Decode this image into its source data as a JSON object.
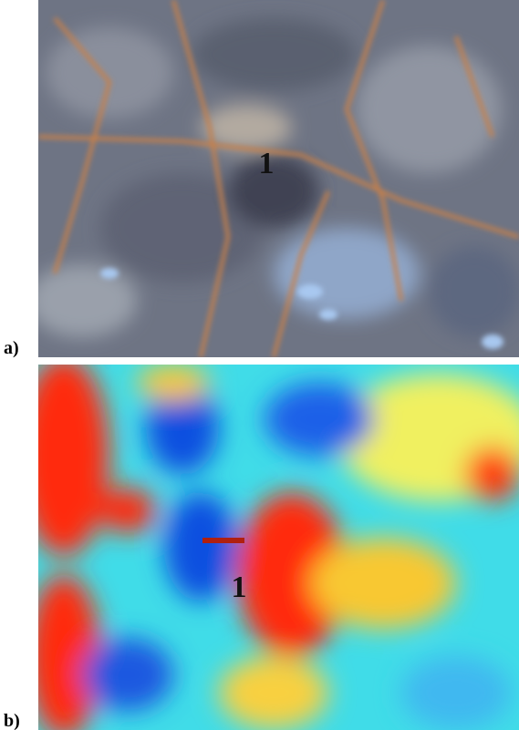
{
  "panels": [
    {
      "label": "a)",
      "marker": "1"
    },
    {
      "label": "b)",
      "marker": "1"
    }
  ]
}
